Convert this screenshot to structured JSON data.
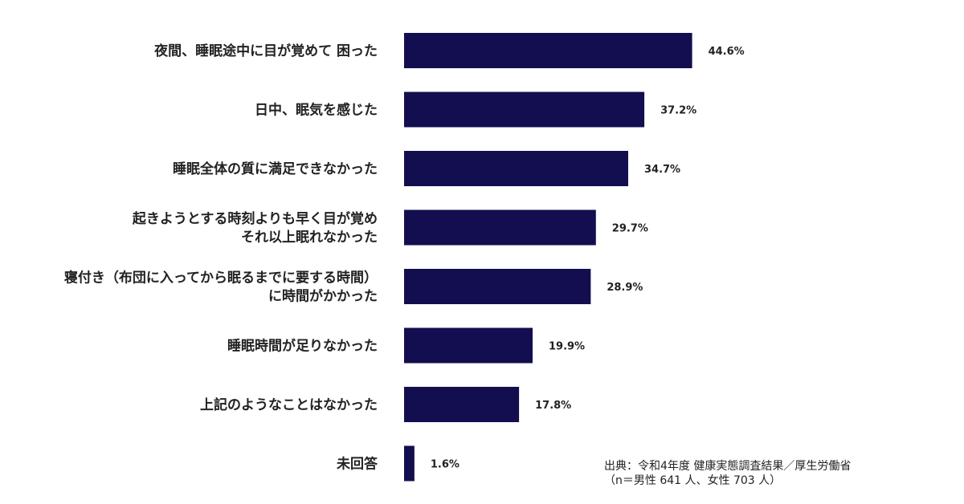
{
  "chart_data": {
    "type": "bar",
    "orientation": "horizontal",
    "categories": [
      [
        "夜間、睡眠途中に目が覚めて 困った"
      ],
      [
        "日中、眠気を感じた"
      ],
      [
        "睡眠全体の質に満足できなかった"
      ],
      [
        "起きようとする時刻よりも早く目が覚め",
        "それ以上眠れなかった"
      ],
      [
        "寝付き（布団に入ってから眠るまでに要する時間）",
        "に時間がかかった"
      ],
      [
        "睡眠時間が足りなかった"
      ],
      [
        "上記のようなことはなかった"
      ],
      [
        "未回答"
      ]
    ],
    "values": [
      44.6,
      37.2,
      34.7,
      29.7,
      28.9,
      19.9,
      17.8,
      1.6
    ],
    "value_labels": [
      "44.6%",
      "37.2%",
      "34.7%",
      "29.7%",
      "28.9%",
      "19.9%",
      "17.8%",
      "1.6%"
    ],
    "xlim": [
      0,
      100
    ],
    "grid": false,
    "bar_color": "#120e4f"
  },
  "source": {
    "line1": "出典：令和4年度 健康実態調査結果／厚生労働省",
    "line2": "（n＝男性 641 人、女性 703 人）"
  }
}
